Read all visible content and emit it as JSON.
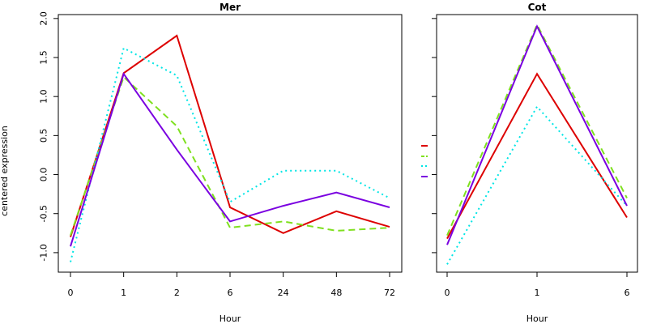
{
  "chart_data": {
    "type": "line",
    "ylabel": "centered expression",
    "ylim": [
      -1.25,
      2.05
    ],
    "yticks": [
      -1.0,
      -0.5,
      0.0,
      0.5,
      1.0,
      1.5,
      2.0
    ],
    "ytick_labels": [
      "-1.0",
      "-0.5",
      "0.0",
      "0.5",
      "1.0",
      "1.5",
      "2.0"
    ],
    "grid": false,
    "legend_placement": "between panels",
    "series_styles": [
      {
        "color": "#dd0000",
        "dash": "solid",
        "width": 2
      },
      {
        "color": "#7fe01f",
        "dash": "dashed",
        "width": 2
      },
      {
        "color": "#00e5e5",
        "dash": "dotted",
        "width": 2
      },
      {
        "color": "#7a00e0",
        "dash": "solid",
        "width": 2
      }
    ],
    "panels": [
      {
        "title": "Mer",
        "xlabel": "Hour",
        "categories": [
          "0",
          "1",
          "2",
          "6",
          "24",
          "48",
          "72"
        ],
        "series": [
          {
            "values": [
              -0.8,
              1.3,
              1.78,
              -0.42,
              -0.75,
              -0.47,
              -0.67
            ]
          },
          {
            "values": [
              -0.78,
              1.25,
              0.62,
              -0.68,
              -0.6,
              -0.72,
              -0.68
            ]
          },
          {
            "values": [
              -1.12,
              1.62,
              1.27,
              -0.35,
              0.05,
              0.05,
              -0.3
            ]
          },
          {
            "values": [
              -0.92,
              1.29,
              0.32,
              -0.6,
              -0.4,
              -0.23,
              -0.42
            ]
          }
        ]
      },
      {
        "title": "Cot",
        "xlabel": "Hour",
        "categories": [
          "0",
          "1",
          "6"
        ],
        "series": [
          {
            "values": [
              -0.82,
              1.29,
              -0.55
            ]
          },
          {
            "values": [
              -0.78,
              1.92,
              -0.3
            ]
          },
          {
            "values": [
              -1.15,
              0.87,
              -0.4
            ]
          },
          {
            "values": [
              -0.9,
              1.9,
              -0.4
            ]
          }
        ]
      }
    ]
  }
}
